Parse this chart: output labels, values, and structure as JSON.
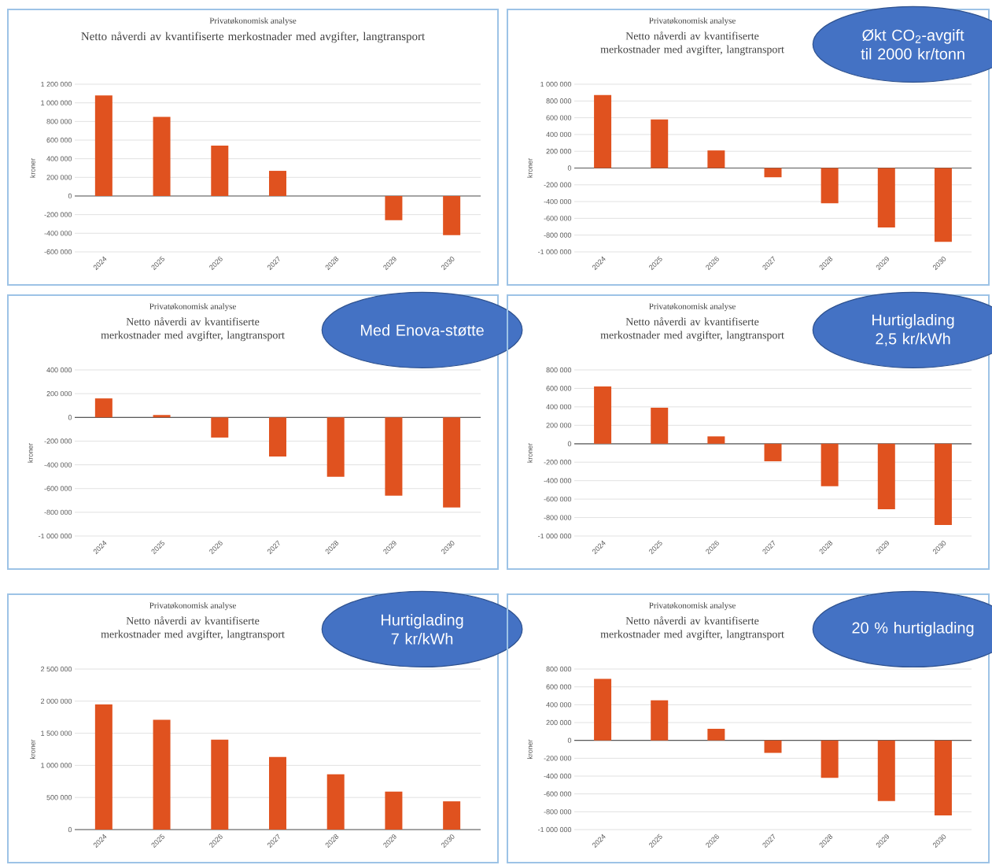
{
  "chart_data": [
    {
      "type": "bar",
      "subtitle": "Privatøkonomisk analyse",
      "title": "Netto nåverdi av kvantifiserte merkostnader med avgifter, langtransport",
      "ylabel": "kroner",
      "categories": [
        "2024",
        "2025",
        "2026",
        "2027",
        "2028",
        "2029",
        "2030"
      ],
      "values": [
        1080000,
        850000,
        540000,
        270000,
        0,
        -260000,
        -420000
      ],
      "color": "#e0521f",
      "ylim": [
        -600000,
        1200000
      ],
      "yticks": [
        {
          "value": -600000,
          "label": "-600 000"
        },
        {
          "value": -400000,
          "label": "-400 000"
        },
        {
          "value": -200000,
          "label": "-200 000"
        },
        0,
        {
          "value": 200000,
          "label": "200 000"
        },
        {
          "value": 400000,
          "label": "400 000"
        },
        {
          "value": 600000,
          "label": "600 000"
        },
        {
          "value": 800000,
          "label": "800 000"
        },
        {
          "value": 1000000,
          "label": "1 000 000"
        },
        {
          "value": 1200000,
          "label": "1 200 000"
        }
      ],
      "grid": "y"
    },
    {
      "type": "bar",
      "subtitle": "Privatøkonomisk analyse",
      "title": "Netto nåverdi av kvantifiserte merkostnader med avgifter, langtransport",
      "ylabel": "kroner",
      "annotations": [
        "Økt CO$_{2}$-avgift til 2000 kr/tonn"
      ],
      "categories": [
        "2024",
        "2025",
        "2026",
        "2027",
        "2028",
        "2029",
        "2030"
      ],
      "values": [
        870000,
        580000,
        210000,
        -110000,
        -420000,
        -710000,
        -880000
      ],
      "color": "#e0521f",
      "ylim": [
        -1000000,
        1000000
      ],
      "yticks": [
        {
          "value": -1000000,
          "label": "-1 000 000"
        },
        {
          "value": -800000,
          "label": "-800 000"
        },
        {
          "value": -600000,
          "label": "-600 000"
        },
        {
          "value": -400000,
          "label": "-400 000"
        },
        {
          "value": -200000,
          "label": "-200 000"
        },
        0,
        {
          "value": 200000,
          "label": "200 000"
        },
        {
          "value": 400000,
          "label": "400 000"
        },
        {
          "value": 600000,
          "label": "600 000"
        },
        {
          "value": 800000,
          "label": "800 000"
        },
        {
          "value": 1000000,
          "label": "1 000 000"
        }
      ],
      "grid": "y"
    },
    {
      "type": "bar",
      "subtitle": "Privatøkonomisk analyse",
      "title": "Netto nåverdi av kvantifiserte merkostnader med avgifter, langtransport",
      "ylabel": "kroner",
      "annotations": [
        "Med Enova-støtte"
      ],
      "categories": [
        "2024",
        "2025",
        "2026",
        "2027",
        "2028",
        "2029",
        "2030"
      ],
      "values": [
        160000,
        20000,
        -170000,
        -330000,
        -500000,
        -660000,
        -760000
      ],
      "color": "#e0521f",
      "ylim": [
        -1000000,
        400000
      ],
      "yticks": [
        {
          "value": -1000000,
          "label": "-1 000 000"
        },
        {
          "value": -800000,
          "label": "-800 000"
        },
        {
          "value": -600000,
          "label": "-600 000"
        },
        {
          "value": -400000,
          "label": "-400 000"
        },
        {
          "value": -200000,
          "label": "-200 000"
        },
        0,
        {
          "value": 200000,
          "label": "200 000"
        },
        {
          "value": 400000,
          "label": "400 000"
        }
      ],
      "grid": "y"
    },
    {
      "type": "bar",
      "subtitle": "Privatøkonomisk analyse",
      "title": "Netto nåverdi av kvantifiserte merkostnader med avgifter, langtransport",
      "ylabel": "kroner",
      "annotations": [
        "Hurtiglading 2,5 kr/kWh"
      ],
      "categories": [
        "2024",
        "2025",
        "2026",
        "2027",
        "2028",
        "2029",
        "2030"
      ],
      "values": [
        620000,
        390000,
        80000,
        -190000,
        -460000,
        -710000,
        -880000
      ],
      "color": "#e0521f",
      "ylim": [
        -1000000,
        800000
      ],
      "yticks": [
        {
          "value": -1000000,
          "label": "-1 000 000"
        },
        {
          "value": -800000,
          "label": "-800 000"
        },
        {
          "value": -600000,
          "label": "-600 000"
        },
        {
          "value": -400000,
          "label": "-400 000"
        },
        {
          "value": -200000,
          "label": "-200 000"
        },
        0,
        {
          "value": 200000,
          "label": "200 000"
        },
        {
          "value": 400000,
          "label": "400 000"
        },
        {
          "value": 600000,
          "label": "600 000"
        },
        {
          "value": 800000,
          "label": "800 000"
        }
      ],
      "grid": "y"
    },
    {
      "type": "bar",
      "subtitle": "Privatøkonomisk analyse",
      "title": "Netto nåverdi av kvantifiserte merkostnader med avgifter, langtransport",
      "ylabel": "kroner",
      "annotations": [
        "Hurtiglading 7 kr/kWh"
      ],
      "categories": [
        "2024",
        "2025",
        "2026",
        "2027",
        "2028",
        "2029",
        "2030"
      ],
      "values": [
        1950000,
        1710000,
        1400000,
        1130000,
        860000,
        590000,
        440000
      ],
      "color": "#e0521f",
      "ylim": [
        0,
        2500000
      ],
      "yticks": [
        0,
        {
          "value": 500000,
          "label": "500 000"
        },
        {
          "value": 1000000,
          "label": "1 000 000"
        },
        {
          "value": 1500000,
          "label": "1 500 000"
        },
        {
          "value": 2000000,
          "label": "2 000 000"
        },
        {
          "value": 2500000,
          "label": "2 500 000"
        }
      ],
      "grid": "y"
    },
    {
      "type": "bar",
      "subtitle": "Privatøkonomisk analyse",
      "title": "Netto nåverdi av kvantifiserte merkostnader med avgifter, langtransport",
      "ylabel": "kroner",
      "annotations": [
        "20 % hurtiglading"
      ],
      "categories": [
        "2024",
        "2025",
        "2026",
        "2027",
        "2028",
        "2029",
        "2030"
      ],
      "values": [
        690000,
        450000,
        130000,
        -140000,
        -420000,
        -680000,
        -840000
      ],
      "color": "#e0521f",
      "ylim": [
        -1000000,
        800000
      ],
      "yticks": [
        {
          "value": -1000000,
          "label": "-1 000 000"
        },
        {
          "value": -800000,
          "label": "-800 000"
        },
        {
          "value": -600000,
          "label": "-600 000"
        },
        {
          "value": -400000,
          "label": "-400 000"
        },
        {
          "value": -200000,
          "label": "-200 000"
        },
        0,
        {
          "value": 200000,
          "label": "200 000"
        },
        {
          "value": 400000,
          "label": "400 000"
        },
        {
          "value": 600000,
          "label": "600 000"
        },
        {
          "value": 800000,
          "label": "800 000"
        }
      ],
      "grid": "y"
    }
  ]
}
